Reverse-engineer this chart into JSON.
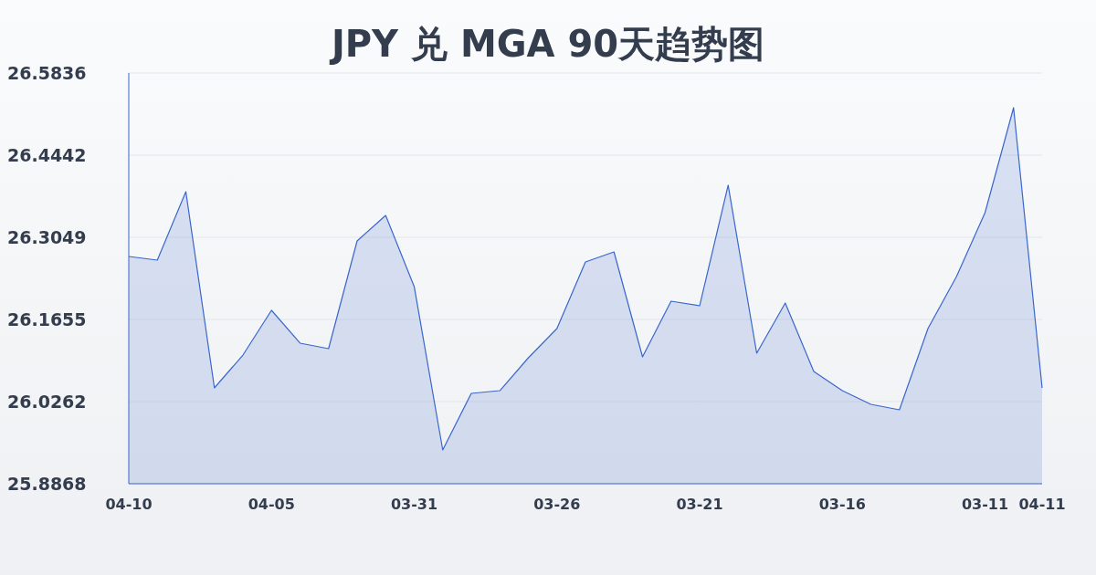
{
  "chart_data": {
    "type": "area",
    "title": "JPY 兑 MGA 90天趋势图",
    "categories": [
      "04-10",
      null,
      null,
      null,
      null,
      "04-05",
      null,
      null,
      null,
      null,
      "03-31",
      null,
      null,
      null,
      null,
      "03-26",
      null,
      null,
      null,
      null,
      "03-21",
      null,
      null,
      null,
      null,
      "03-16",
      null,
      null,
      null,
      null,
      "03-11",
      null,
      "04-11"
    ],
    "series": [
      {
        "color": "#3a66cc",
        "values": [
          26.2724,
          26.2662,
          26.3823,
          26.0494,
          26.1051,
          26.181,
          26.1253,
          26.116,
          26.2987,
          26.342,
          26.2213,
          25.9441,
          26.0401,
          26.0447,
          26.1005,
          26.15,
          26.2631,
          26.2801,
          26.102,
          26.1965,
          26.1887,
          26.3932,
          26.1082,
          26.1934,
          26.0773,
          26.0447,
          26.0215,
          26.0122,
          26.15,
          26.2383,
          26.3467,
          26.5248,
          26.0494
        ]
      }
    ],
    "ylim": [
      25.8868,
      26.5836
    ],
    "yticks": [
      25.8868,
      26.0262,
      26.1655,
      26.3049,
      26.4442,
      26.5836
    ],
    "grid": "y"
  }
}
